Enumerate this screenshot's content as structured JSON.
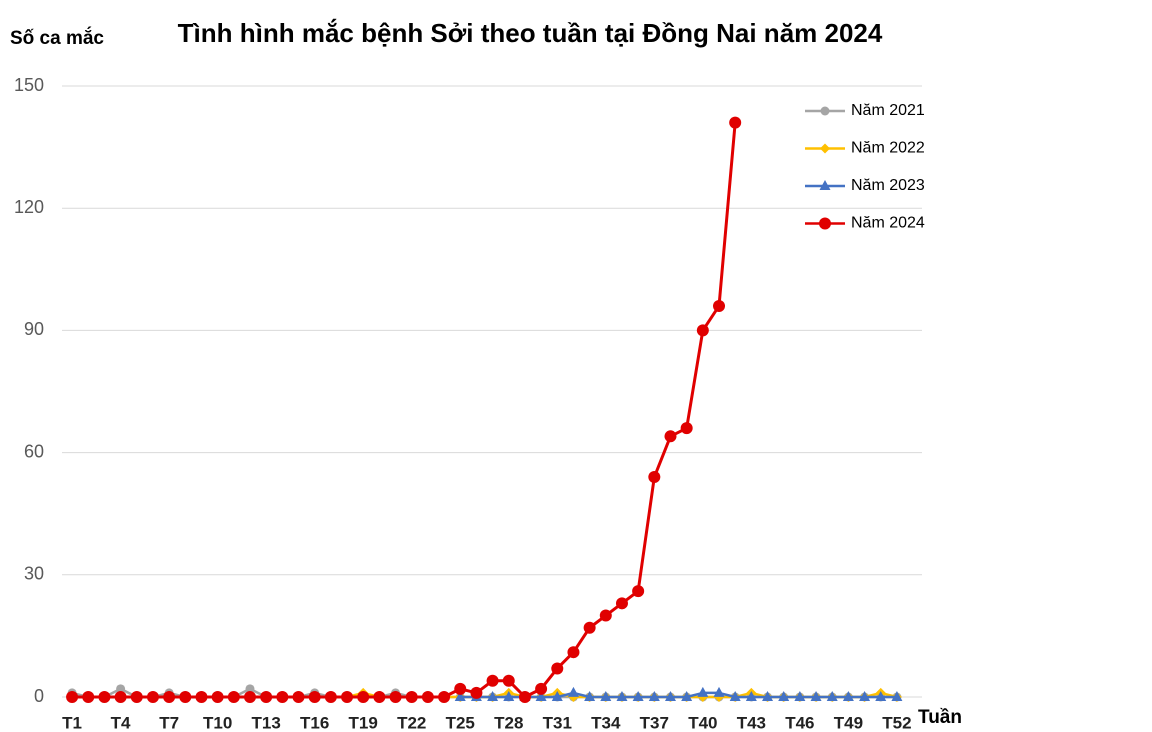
{
  "chart_data": {
    "type": "line",
    "title": "Tình hình mắc bệnh Sởi theo tuần tại Đồng Nai năm 2024",
    "y_label": "Số ca mắc",
    "x_label": "Tuần",
    "categories": [
      "T1",
      null,
      null,
      "T4",
      null,
      null,
      "T7",
      null,
      null,
      "T10",
      null,
      null,
      "T13",
      null,
      null,
      "T16",
      null,
      null,
      "T19",
      null,
      null,
      "T22",
      null,
      null,
      "T25",
      null,
      null,
      "T28",
      null,
      null,
      "T31",
      null,
      null,
      "T34",
      null,
      null,
      "T37",
      null,
      null,
      "T40",
      null,
      null,
      "T43",
      null,
      null,
      "T46",
      null,
      null,
      "T49",
      null,
      null,
      "T52"
    ],
    "series": [
      {
        "name": "Năm 2021",
        "color": "#a5a5a5",
        "marker": "circle",
        "values": [
          1,
          0,
          0,
          2,
          0,
          0,
          1,
          0,
          0,
          0,
          0,
          2,
          0,
          0,
          0,
          1,
          0,
          0,
          0,
          0,
          1,
          0,
          0,
          0,
          0,
          0,
          0,
          0,
          0,
          0,
          0,
          0,
          0,
          0,
          0,
          0,
          0,
          0,
          0,
          0,
          0,
          0,
          0,
          0,
          0,
          0,
          0,
          0,
          0,
          0,
          0,
          0
        ]
      },
      {
        "name": "Năm 2022",
        "color": "#ffc000",
        "marker": "diamond",
        "values": [
          0,
          0,
          0,
          0,
          0,
          0,
          0,
          0,
          0,
          0,
          0,
          0,
          0,
          0,
          0,
          0,
          0,
          0,
          1,
          0,
          0,
          0,
          0,
          0,
          0,
          0,
          0,
          1,
          0,
          0,
          1,
          0,
          0,
          0,
          0,
          0,
          0,
          0,
          0,
          0,
          0,
          0,
          1,
          0,
          0,
          0,
          0,
          0,
          0,
          0,
          1,
          0
        ]
      },
      {
        "name": "Năm 2023",
        "color": "#4472c4",
        "marker": "triangle",
        "values": [
          null,
          null,
          null,
          null,
          null,
          null,
          null,
          null,
          null,
          null,
          null,
          null,
          null,
          null,
          null,
          null,
          null,
          null,
          null,
          null,
          null,
          null,
          null,
          null,
          0,
          0,
          0,
          0,
          0,
          0,
          0,
          1,
          0,
          0,
          0,
          0,
          0,
          0,
          0,
          1,
          1,
          0,
          0,
          0,
          0,
          0,
          0,
          0,
          0,
          0,
          0,
          0
        ]
      },
      {
        "name": "Năm 2024",
        "color": "#e00000",
        "marker": "big-circle",
        "values": [
          0,
          0,
          0,
          0,
          0,
          0,
          0,
          0,
          0,
          0,
          0,
          0,
          0,
          0,
          0,
          0,
          0,
          0,
          0,
          0,
          0,
          0,
          0,
          0,
          2,
          1,
          4,
          4,
          0,
          2,
          7,
          11,
          17,
          20,
          23,
          26,
          54,
          64,
          66,
          90,
          96,
          141,
          null,
          null,
          null,
          null,
          null,
          null,
          null,
          null,
          null,
          null
        ]
      }
    ],
    "ylim": [
      0,
      150
    ],
    "yticks": [
      0,
      30,
      60,
      90,
      120,
      150
    ],
    "grid": true,
    "legend": "upper right"
  }
}
